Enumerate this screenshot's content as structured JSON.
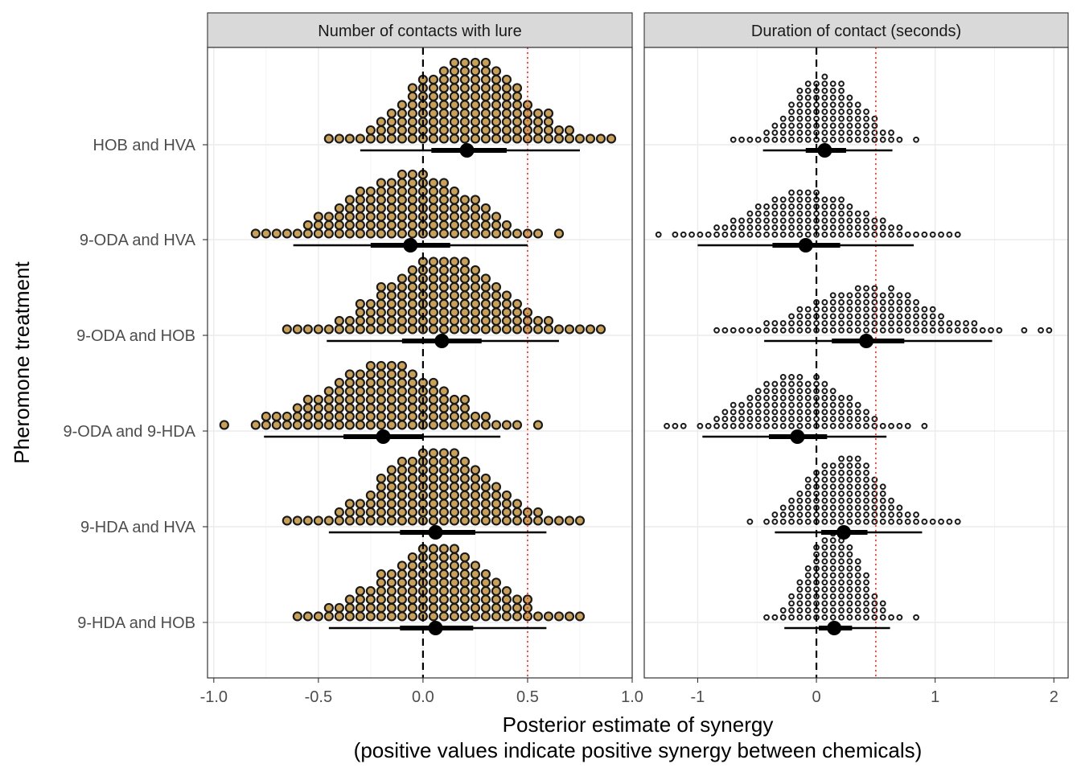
{
  "chart_data": {
    "type": "dotplot",
    "title": "",
    "ylabel": "Pheromone treatment",
    "xlabel_line1": "Posterior estimate of synergy",
    "xlabel_line2": "(positive values indicate positive synergy between chemicals)",
    "categories": [
      "HOB and HVA",
      "9-ODA and HVA",
      "9-ODA and HOB",
      "9-ODA and 9-HDA",
      "9-HDA and HVA",
      "9-HDA and HOB"
    ],
    "reference_lines": {
      "zero": {
        "value": 0,
        "style": "dashed",
        "color": "#000000"
      },
      "threshold": {
        "value": 0.5,
        "style": "dotted",
        "color": "#ff3b30"
      }
    },
    "panels": [
      {
        "strip_label": "Number of contacts with lure",
        "xlim": [
          -1.03,
          1.0
        ],
        "xticks": [
          -1.0,
          -0.5,
          0.0,
          0.5,
          1.0
        ],
        "xtick_labels": [
          "-1.0",
          "-0.5",
          "0.0",
          "0.5",
          "1.0"
        ],
        "dot_fill": "#c8a05a",
        "dot_size": "large",
        "binwidth": 0.05,
        "series": [
          {
            "name": "HOB and HVA",
            "median": 0.21,
            "inner": [
              0.04,
              0.4
            ],
            "outer": [
              -0.3,
              0.75
            ],
            "min": -0.46,
            "max": 0.92,
            "max_stack": 10
          },
          {
            "name": "9-ODA and HVA",
            "median": -0.06,
            "inner": [
              -0.25,
              0.13
            ],
            "outer": [
              -0.62,
              0.5
            ],
            "min": -0.82,
            "max": 0.66,
            "max_stack": 8
          },
          {
            "name": "9-ODA and HOB",
            "median": 0.09,
            "inner": [
              -0.1,
              0.28
            ],
            "outer": [
              -0.46,
              0.65
            ],
            "min": -0.65,
            "max": 0.84,
            "max_stack": 9
          },
          {
            "name": "9-ODA and 9-HDA",
            "median": -0.19,
            "inner": [
              -0.38,
              0.0
            ],
            "outer": [
              -0.76,
              0.37
            ],
            "min": -0.96,
            "max": 0.54,
            "max_stack": 8
          },
          {
            "name": "9-HDA and HVA",
            "median": 0.06,
            "inner": [
              -0.11,
              0.25
            ],
            "outer": [
              -0.45,
              0.59
            ],
            "min": -0.63,
            "max": 0.76,
            "max_stack": 9
          },
          {
            "name": "9-HDA and HOB",
            "median": 0.06,
            "inner": [
              -0.11,
              0.24
            ],
            "outer": [
              -0.45,
              0.59
            ],
            "min": -0.62,
            "max": 0.75,
            "max_stack": 9
          }
        ]
      },
      {
        "strip_label": "Duration of contact (seconds)",
        "xlim": [
          -1.45,
          2.12
        ],
        "xticks": [
          -1,
          0,
          1,
          2
        ],
        "xtick_labels": [
          "-1",
          "0",
          "1",
          "2"
        ],
        "dot_fill": "#ffffff",
        "dot_size": "small",
        "binwidth": 0.07,
        "series": [
          {
            "name": "HOB and HVA",
            "median": 0.07,
            "inner": [
              -0.09,
              0.25
            ],
            "outer": [
              -0.45,
              0.64
            ],
            "min": -0.68,
            "max": 0.86,
            "max_stack": 10
          },
          {
            "name": "9-ODA and HVA",
            "median": -0.09,
            "inner": [
              -0.37,
              0.2
            ],
            "outer": [
              -1.0,
              0.82
            ],
            "min": -1.36,
            "max": 1.17,
            "max_stack": 7
          },
          {
            "name": "9-ODA and HOB",
            "median": 0.42,
            "inner": [
              0.13,
              0.74
            ],
            "outer": [
              -0.44,
              1.48
            ],
            "min": -0.81,
            "max": 1.97,
            "max_stack": 7
          },
          {
            "name": "9-ODA and 9-HDA",
            "median": -0.16,
            "inner": [
              -0.4,
              0.09
            ],
            "outer": [
              -0.96,
              0.59
            ],
            "min": -1.28,
            "max": 0.88,
            "max_stack": 8
          },
          {
            "name": "9-HDA and HVA",
            "median": 0.23,
            "inner": [
              0.04,
              0.43
            ],
            "outer": [
              -0.35,
              0.89
            ],
            "min": -0.58,
            "max": 1.17,
            "max_stack": 10
          },
          {
            "name": "9-HDA and HOB",
            "median": 0.15,
            "inner": [
              0.02,
              0.3
            ],
            "outer": [
              -0.27,
              0.62
            ],
            "min": -0.44,
            "max": 0.82,
            "max_stack": 13
          }
        ]
      }
    ]
  }
}
